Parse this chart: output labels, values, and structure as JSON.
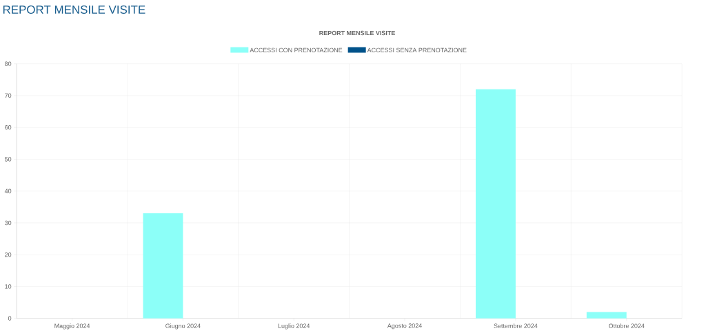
{
  "chart_data": {
    "type": "bar",
    "title": "REPORT MENSILE VISITE",
    "subtitle": "REPORT MENSILE VISITE",
    "categories": [
      "Maggio 2024",
      "Giugno 2024",
      "Luglio 2024",
      "Agosto 2024",
      "Settembre 2024",
      "Ottobre 2024"
    ],
    "series": [
      {
        "name": "ACCESSI CON PRENOTAZIONE",
        "color": "#8cfff8",
        "values": [
          0,
          33,
          0,
          0,
          72,
          2
        ]
      },
      {
        "name": "ACCESSI SENZA PRENOTAZIONE",
        "color": "#00528a",
        "values": [
          0,
          0,
          0,
          0,
          0,
          0
        ]
      }
    ],
    "ylim": [
      0,
      80
    ],
    "yticks": [
      0,
      10,
      20,
      30,
      40,
      50,
      60,
      70,
      80
    ],
    "grid": true,
    "legend": "top"
  }
}
